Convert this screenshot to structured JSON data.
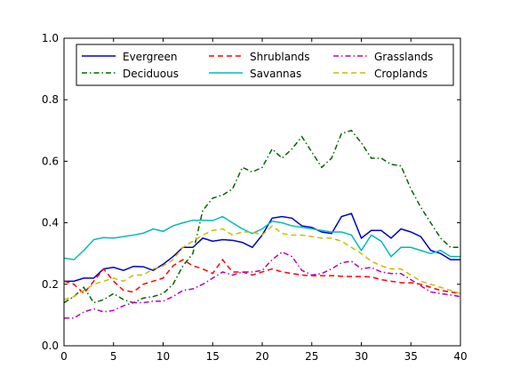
{
  "chart_data": {
    "type": "line",
    "title": "",
    "xlabel": "",
    "ylabel": "",
    "xlim": [
      0,
      40
    ],
    "ylim": [
      0.0,
      1.0
    ],
    "xticks": [
      0,
      5,
      10,
      15,
      20,
      25,
      30,
      35,
      40
    ],
    "yticks": [
      0.0,
      0.2,
      0.4,
      0.6,
      0.8,
      1.0
    ],
    "xtick_labels": [
      "0",
      "5",
      "10",
      "15",
      "20",
      "25",
      "30",
      "35",
      "40"
    ],
    "ytick_labels": [
      "0.0",
      "0.2",
      "0.4",
      "0.6",
      "0.8",
      "1.0"
    ],
    "grid": false,
    "legend_position": "top",
    "legend_columns": 3,
    "x": [
      0,
      1,
      2,
      3,
      4,
      5,
      6,
      7,
      8,
      9,
      10,
      11,
      12,
      13,
      14,
      15,
      16,
      17,
      18,
      19,
      20,
      21,
      22,
      23,
      24,
      25,
      26,
      27,
      28,
      29,
      30,
      31,
      32,
      33,
      34,
      35,
      36,
      37,
      38,
      39,
      40
    ],
    "series": [
      {
        "name": "Evergreen",
        "color": "#0000cc",
        "dash": "solid",
        "values": [
          0.21,
          0.21,
          0.22,
          0.22,
          0.25,
          0.255,
          0.245,
          0.258,
          0.257,
          0.245,
          0.265,
          0.29,
          0.32,
          0.32,
          0.35,
          0.34,
          0.345,
          0.343,
          0.336,
          0.32,
          0.36,
          0.415,
          0.42,
          0.415,
          0.39,
          0.385,
          0.37,
          0.365,
          0.42,
          0.43,
          0.35,
          0.375,
          0.375,
          0.35,
          0.38,
          0.37,
          0.355,
          0.31,
          0.3,
          0.28,
          0.28
        ]
      },
      {
        "name": "Deciduous",
        "color": "#006600",
        "dash": "dashdot",
        "values": [
          0.14,
          0.16,
          0.19,
          0.14,
          0.15,
          0.17,
          0.15,
          0.14,
          0.155,
          0.16,
          0.17,
          0.2,
          0.26,
          0.3,
          0.44,
          0.48,
          0.49,
          0.51,
          0.58,
          0.565,
          0.58,
          0.64,
          0.61,
          0.64,
          0.68,
          0.63,
          0.58,
          0.61,
          0.69,
          0.7,
          0.66,
          0.61,
          0.61,
          0.59,
          0.585,
          0.51,
          0.45,
          0.4,
          0.35,
          0.32,
          0.32
        ]
      },
      {
        "name": "Shrublands",
        "color": "#ff0000",
        "dash": "dashed",
        "values": [
          0.21,
          0.2,
          0.17,
          0.21,
          0.25,
          0.21,
          0.18,
          0.175,
          0.2,
          0.21,
          0.22,
          0.26,
          0.28,
          0.26,
          0.25,
          0.235,
          0.28,
          0.24,
          0.24,
          0.23,
          0.24,
          0.25,
          0.24,
          0.235,
          0.23,
          0.228,
          0.228,
          0.228,
          0.226,
          0.225,
          0.225,
          0.224,
          0.215,
          0.21,
          0.205,
          0.205,
          0.2,
          0.19,
          0.18,
          0.175,
          0.17
        ]
      },
      {
        "name": "Savannas",
        "color": "#00bbbb",
        "dash": "solid",
        "values": [
          0.285,
          0.28,
          0.31,
          0.345,
          0.352,
          0.35,
          0.355,
          0.36,
          0.366,
          0.38,
          0.372,
          0.39,
          0.4,
          0.408,
          0.408,
          0.407,
          0.42,
          0.4,
          0.38,
          0.365,
          0.38,
          0.405,
          0.4,
          0.39,
          0.385,
          0.38,
          0.375,
          0.37,
          0.37,
          0.36,
          0.31,
          0.36,
          0.34,
          0.29,
          0.32,
          0.32,
          0.31,
          0.3,
          0.31,
          0.29,
          0.29
        ]
      },
      {
        "name": "Grasslands",
        "color": "#bb00bb",
        "dash": "dashdot",
        "values": [
          0.09,
          0.09,
          0.11,
          0.12,
          0.11,
          0.115,
          0.13,
          0.14,
          0.14,
          0.145,
          0.145,
          0.16,
          0.18,
          0.185,
          0.2,
          0.22,
          0.24,
          0.23,
          0.24,
          0.24,
          0.245,
          0.28,
          0.305,
          0.29,
          0.245,
          0.23,
          0.235,
          0.25,
          0.27,
          0.275,
          0.25,
          0.255,
          0.24,
          0.235,
          0.235,
          0.215,
          0.195,
          0.175,
          0.17,
          0.165,
          0.16
        ]
      },
      {
        "name": "Croplands",
        "color": "#ccbb00",
        "dash": "dashed",
        "values": [
          0.15,
          0.16,
          0.18,
          0.2,
          0.21,
          0.22,
          0.21,
          0.23,
          0.23,
          0.25,
          0.26,
          0.28,
          0.32,
          0.34,
          0.36,
          0.375,
          0.38,
          0.36,
          0.37,
          0.37,
          0.36,
          0.39,
          0.365,
          0.36,
          0.36,
          0.355,
          0.35,
          0.35,
          0.34,
          0.32,
          0.3,
          0.275,
          0.26,
          0.25,
          0.25,
          0.23,
          0.21,
          0.2,
          0.19,
          0.18,
          0.17
        ]
      }
    ]
  }
}
